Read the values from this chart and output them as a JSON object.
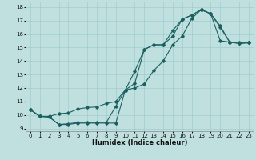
{
  "xlabel": "Humidex (Indice chaleur)",
  "background_color": "#c0e0e0",
  "grid_color": "#a0cccc",
  "line_color": "#1a6060",
  "xlim": [
    -0.5,
    23.5
  ],
  "ylim": [
    8.8,
    18.4
  ],
  "xticks": [
    0,
    1,
    2,
    3,
    4,
    5,
    6,
    7,
    8,
    9,
    10,
    11,
    12,
    13,
    14,
    15,
    16,
    17,
    18,
    19,
    20,
    21,
    22,
    23
  ],
  "yticks": [
    9,
    10,
    11,
    12,
    13,
    14,
    15,
    16,
    17,
    18
  ],
  "line1_x": [
    0,
    1,
    2,
    3,
    4,
    5,
    6,
    7,
    8,
    9,
    10,
    11,
    12,
    13,
    14,
    15,
    16,
    17,
    18,
    19,
    20,
    21,
    22,
    23
  ],
  "line1_y": [
    10.4,
    9.9,
    9.85,
    9.3,
    9.3,
    9.4,
    9.4,
    9.4,
    9.4,
    9.4,
    11.85,
    13.25,
    14.85,
    15.2,
    15.2,
    16.25,
    17.1,
    17.4,
    17.8,
    17.5,
    15.5,
    15.4,
    15.3,
    15.35
  ],
  "line2_x": [
    0,
    1,
    2,
    3,
    4,
    5,
    6,
    7,
    8,
    9,
    10,
    11,
    12,
    13,
    14,
    15,
    16,
    17,
    18,
    19,
    20,
    21,
    22,
    23
  ],
  "line2_y": [
    10.4,
    9.9,
    9.9,
    10.1,
    10.15,
    10.45,
    10.55,
    10.6,
    10.85,
    11.0,
    11.85,
    12.0,
    12.3,
    13.3,
    14.0,
    15.2,
    15.85,
    17.15,
    17.8,
    17.5,
    16.5,
    15.4,
    15.4,
    15.35
  ],
  "line3_x": [
    0,
    1,
    2,
    3,
    4,
    5,
    6,
    7,
    8,
    9,
    10,
    11,
    12,
    13,
    14,
    15,
    16,
    17,
    18,
    19,
    20,
    21,
    22,
    23
  ],
  "line3_y": [
    10.4,
    9.9,
    9.85,
    9.3,
    9.35,
    9.45,
    9.45,
    9.45,
    9.45,
    10.65,
    11.85,
    12.35,
    14.85,
    15.2,
    15.2,
    15.85,
    17.1,
    17.4,
    17.8,
    17.5,
    16.6,
    15.4,
    15.3,
    15.35
  ],
  "xlabel_fontsize": 6.0,
  "tick_fontsize": 5.0
}
